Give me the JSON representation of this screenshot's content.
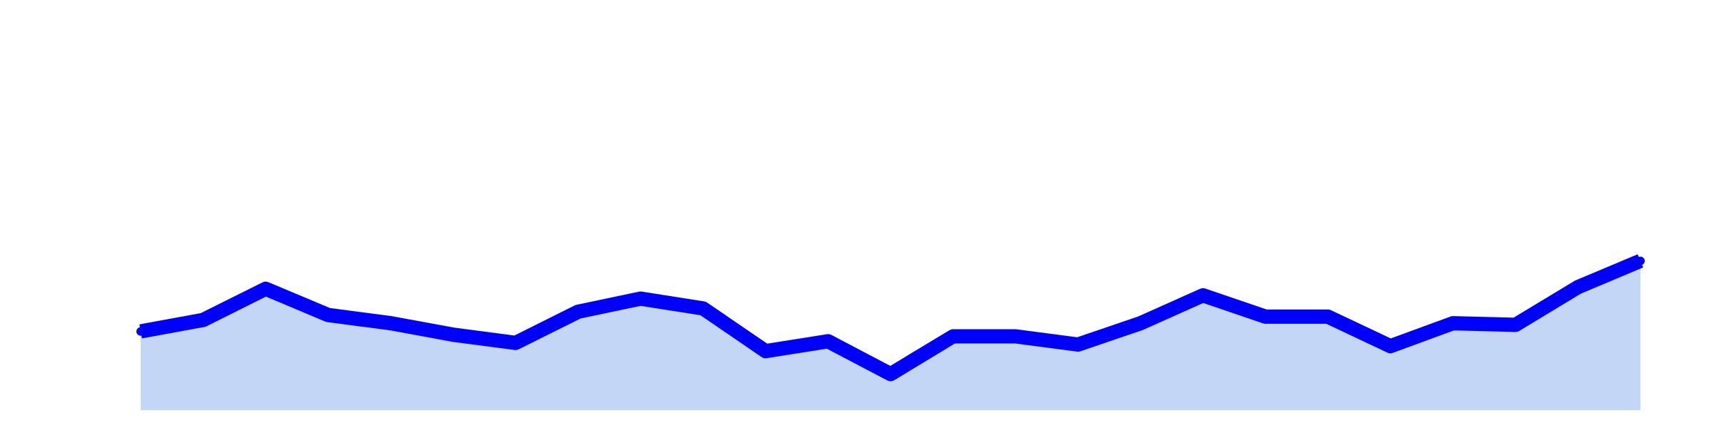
{
  "chart_data": {
    "type": "area",
    "title": "",
    "xlabel": "",
    "ylabel": "",
    "grid": false,
    "legend": "none",
    "x": [
      0,
      1,
      2,
      3,
      4,
      5,
      6,
      7,
      8,
      9,
      10,
      11,
      12,
      13,
      14,
      15,
      16,
      17,
      18,
      19,
      20,
      21,
      22,
      23,
      24
    ],
    "values": [
      48,
      55,
      74,
      58,
      53,
      46,
      41,
      60,
      68,
      62,
      36,
      42,
      22,
      45,
      45,
      40,
      53,
      70,
      57,
      57,
      39,
      53,
      52,
      75,
      91
    ],
    "ylim": [
      0,
      250
    ],
    "colors": {
      "line": "#0000ff",
      "fill": "#c4d6f6",
      "background": "#ffffff"
    }
  }
}
